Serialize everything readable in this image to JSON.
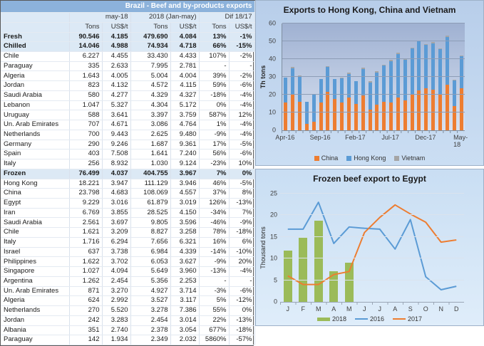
{
  "table": {
    "title": "Brazil - Beef and by-products exports",
    "col_groups": [
      "may-18",
      "2018 (Jan-may)",
      "Dif 18/17"
    ],
    "sub_headers": [
      "Tons",
      "US$/t",
      "Tons",
      "US$/t",
      "Tons",
      "US$/t"
    ],
    "rows": [
      {
        "label": "Fresh",
        "bold": true,
        "values": [
          "90.546",
          "4.185",
          "479.690",
          "4.084",
          "13%",
          "-1%"
        ]
      },
      {
        "label": "Chilled",
        "bold": true,
        "values": [
          "14.046",
          "4.988",
          "74.934",
          "4.718",
          "66%",
          "-15%"
        ]
      },
      {
        "label": "Chile",
        "values": [
          "6.227",
          "4.455",
          "33.430",
          "4.433",
          "107%",
          "-2%"
        ]
      },
      {
        "label": "Paraguay",
        "values": [
          "335",
          "2.633",
          "7.995",
          "2.781",
          "-",
          "-"
        ]
      },
      {
        "label": "Algeria",
        "values": [
          "1.643",
          "4.005",
          "5.004",
          "4.004",
          "39%",
          "-2%"
        ]
      },
      {
        "label": "Jordan",
        "values": [
          "823",
          "4.132",
          "4.572",
          "4.115",
          "59%",
          "-6%"
        ]
      },
      {
        "label": "Saudi Arabia",
        "values": [
          "580",
          "4.277",
          "4.329",
          "4.327",
          "-18%",
          "-4%"
        ]
      },
      {
        "label": "Lebanon",
        "values": [
          "1.047",
          "5.327",
          "4.304",
          "5.172",
          "0%",
          "-4%"
        ]
      },
      {
        "label": "Uruguay",
        "values": [
          "588",
          "3.641",
          "3.397",
          "3.759",
          "587%",
          "12%"
        ]
      },
      {
        "label": "Un. Arab Emirates",
        "values": [
          "707",
          "4.671",
          "3.086",
          "4.764",
          "1%",
          "-4%"
        ]
      },
      {
        "label": "Netherlands",
        "values": [
          "700",
          "9.443",
          "2.625",
          "9.480",
          "-9%",
          "-4%"
        ]
      },
      {
        "label": "Germany",
        "values": [
          "290",
          "9.246",
          "1.687",
          "9.361",
          "17%",
          "-5%"
        ]
      },
      {
        "label": "Spain",
        "values": [
          "403",
          "7.508",
          "1.641",
          "7.240",
          "56%",
          "-6%"
        ]
      },
      {
        "label": "Italy",
        "values": [
          "256",
          "8.932",
          "1.030",
          "9.124",
          "-23%",
          "10%"
        ]
      },
      {
        "label": "Frozen",
        "bold": true,
        "values": [
          "76.499",
          "4.037",
          "404.755",
          "3.967",
          "7%",
          "0%"
        ]
      },
      {
        "label": "Hong Kong",
        "values": [
          "18.221",
          "3.947",
          "111.129",
          "3.946",
          "46%",
          "-5%"
        ]
      },
      {
        "label": "China",
        "values": [
          "23.798",
          "4.683",
          "108.069",
          "4.557",
          "37%",
          "8%"
        ]
      },
      {
        "label": "Egypt",
        "values": [
          "9.229",
          "3.016",
          "61.879",
          "3.019",
          "126%",
          "-13%"
        ]
      },
      {
        "label": "Iran",
        "values": [
          "6.769",
          "3.855",
          "28.525",
          "4.150",
          "-34%",
          "7%"
        ]
      },
      {
        "label": "Saudi Arabia",
        "values": [
          "2.561",
          "3.697",
          "9.805",
          "3.596",
          "-46%",
          "-9%"
        ]
      },
      {
        "label": "Chile",
        "values": [
          "1.621",
          "3.209",
          "8.827",
          "3.258",
          "78%",
          "-18%"
        ]
      },
      {
        "label": "Italy",
        "values": [
          "1.716",
          "6.294",
          "7.656",
          "6.321",
          "16%",
          "6%"
        ]
      },
      {
        "label": "Israel",
        "values": [
          "637",
          "3.738",
          "6.984",
          "4.339",
          "-14%",
          "-10%"
        ]
      },
      {
        "label": "Philippines",
        "values": [
          "1.622",
          "3.702",
          "6.053",
          "3.627",
          "-9%",
          "20%"
        ]
      },
      {
        "label": "Singapore",
        "values": [
          "1.027",
          "4.094",
          "5.649",
          "3.960",
          "-13%",
          "-4%"
        ]
      },
      {
        "label": "Argentina",
        "values": [
          "1.262",
          "2.454",
          "5.356",
          "2.253",
          "-",
          "-"
        ]
      },
      {
        "label": "Un. Arab Emirates",
        "values": [
          "871",
          "3.270",
          "4.927",
          "3.714",
          "-3%",
          "-6%"
        ]
      },
      {
        "label": "Algeria",
        "values": [
          "624",
          "2.992",
          "3.527",
          "3.117",
          "5%",
          "-12%"
        ]
      },
      {
        "label": "Netherlands",
        "values": [
          "270",
          "5.520",
          "3.278",
          "7.386",
          "55%",
          "0%"
        ]
      },
      {
        "label": "Jordan",
        "values": [
          "242",
          "3.283",
          "2.454",
          "3.014",
          "22%",
          "-13%"
        ]
      },
      {
        "label": "Albania",
        "values": [
          "351",
          "2.740",
          "2.378",
          "3.054",
          "677%",
          "-18%"
        ]
      },
      {
        "label": "Paraguay",
        "values": [
          "142",
          "1.934",
          "2.349",
          "2.032",
          "5860%",
          "-57%"
        ]
      }
    ]
  },
  "chart_data": [
    {
      "type": "bar",
      "stacked": true,
      "title": "Exports to Hong Kong, China and Vietnam",
      "ylabel": "Th tons",
      "ylim": [
        0,
        60
      ],
      "yticks": [
        0,
        10,
        20,
        30,
        40,
        50,
        60
      ],
      "grid": true,
      "legend_position": "bottom",
      "x": [
        "Apr-16",
        "May-16",
        "Jun-16",
        "Jul-16",
        "Aug-16",
        "Sep-16",
        "Oct-16",
        "Nov-16",
        "Dec-16",
        "Jan-17",
        "Feb-17",
        "Mar-17",
        "Apr-17",
        "May-17",
        "Jun-17",
        "Jul-17",
        "Aug-17",
        "Sep-17",
        "Oct-17",
        "Nov-17",
        "Dec-17",
        "Jan-18",
        "Feb-18",
        "Mar-18",
        "Apr-18",
        "May-18"
      ],
      "xtick_labels": [
        "Apr-16",
        "Sep-16",
        "Feb-17",
        "Jul-17",
        "Dec-17",
        "May-18"
      ],
      "xtick_indices": [
        0,
        5,
        10,
        15,
        20,
        25
      ],
      "series": [
        {
          "name": "China",
          "color": "#ED7D31",
          "values": [
            15.5,
            20,
            16,
            3.5,
            5,
            15.7,
            21.5,
            17.5,
            15.5,
            18.5,
            15,
            19.5,
            11.5,
            14.5,
            16,
            15.5,
            18.5,
            17,
            20,
            22.5,
            23.5,
            23,
            20.5,
            25.5,
            13.5,
            23.5
          ]
        },
        {
          "name": "Hong Kong",
          "color": "#5B9BD5",
          "values": [
            14,
            15,
            14.5,
            12.5,
            15.3,
            13,
            14,
            11.3,
            13.7,
            13.2,
            12.5,
            15,
            15.5,
            18,
            20.5,
            23.5,
            24.5,
            22.5,
            26,
            27.5,
            24.5,
            26,
            25,
            27,
            14.5,
            18
          ]
        },
        {
          "name": "Vietnam",
          "color": "#A5A5A5",
          "values": [
            0.3,
            0.8,
            0.5,
            0.2,
            0.2,
            0.3,
            0.7,
            0.2,
            0.3,
            0.8,
            0.3,
            0.8,
            0.5,
            0.8,
            0.5,
            0.5,
            0.5,
            0.5,
            0.5,
            0.5,
            0.5,
            0.5,
            0.5,
            0.7,
            0.5,
            0.7
          ]
        }
      ]
    },
    {
      "type": "line",
      "title": "Frozen beef export to Egypt",
      "ylabel": "Thousand tons",
      "ylim": [
        0,
        25
      ],
      "yticks": [
        0,
        5,
        10,
        15,
        20,
        25
      ],
      "grid": true,
      "legend_position": "bottom",
      "categories": [
        "J",
        "F",
        "M",
        "A",
        "M",
        "J",
        "J",
        "A",
        "S",
        "O",
        "N",
        "D"
      ],
      "series": [
        {
          "name": "2018",
          "type": "bar",
          "color": "#9BBB59",
          "values": [
            11.8,
            14.8,
            18.7,
            7,
            9,
            null,
            null,
            null,
            null,
            null,
            null,
            null
          ]
        },
        {
          "name": "2016",
          "type": "line",
          "color": "#5B9BD5",
          "values": [
            16.8,
            16.8,
            23,
            13.5,
            17.3,
            17,
            16.8,
            12.2,
            19,
            5.8,
            2.8,
            3.6
          ]
        },
        {
          "name": "2017",
          "type": "line",
          "color": "#ED7D31",
          "values": [
            6,
            4,
            4,
            6.3,
            7,
            16,
            19.5,
            22.4,
            20.3,
            18.4,
            13.8,
            14.3
          ]
        }
      ]
    }
  ]
}
